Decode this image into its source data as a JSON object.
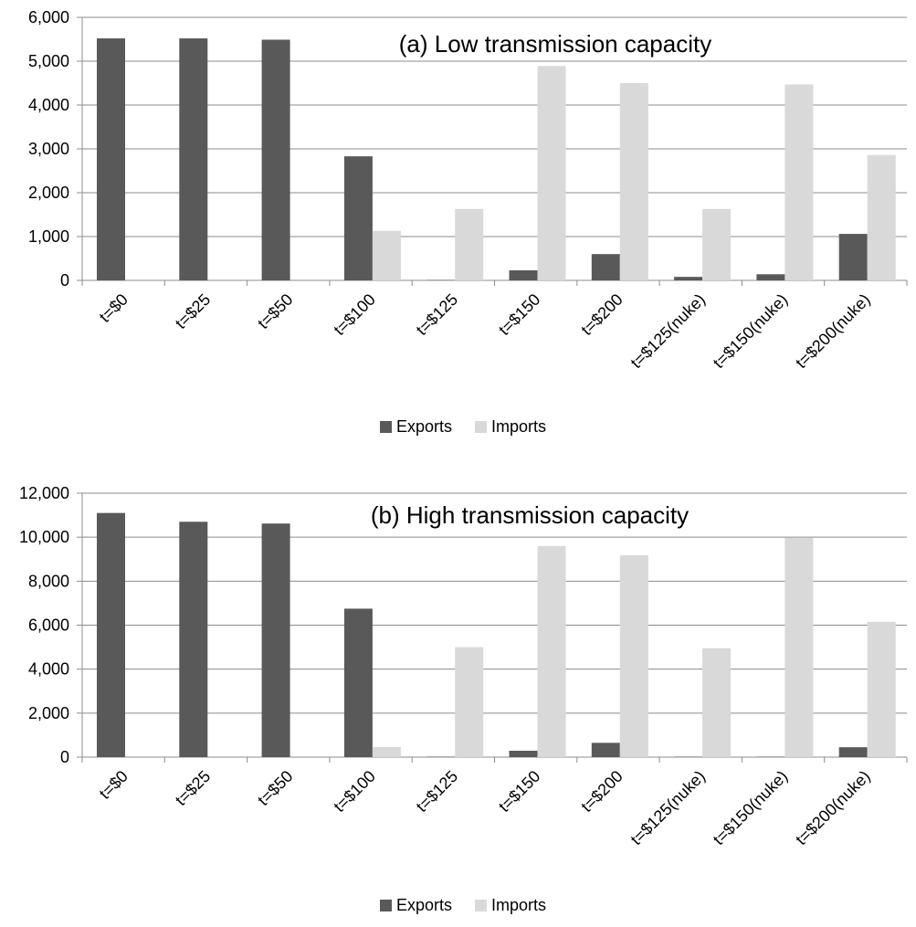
{
  "chart_data": [
    {
      "type": "bar",
      "title": "(a) Low transmission capacity",
      "categories": [
        "t=$0",
        "t=$25",
        "t=$50",
        "t=$100",
        "t=$125",
        "t=$150",
        "t=$200",
        "t=$125(nuke)",
        "t=$150(nuke)",
        "t=$200(nuke)"
      ],
      "series": [
        {
          "name": "Exports",
          "color": "#595959",
          "values": [
            5520,
            5520,
            5490,
            2830,
            10,
            230,
            600,
            80,
            140,
            1060
          ]
        },
        {
          "name": "Imports",
          "color": "#d9d9d9",
          "values": [
            0,
            0,
            0,
            1130,
            1630,
            4890,
            4500,
            1630,
            4470,
            2860
          ]
        }
      ],
      "ylim": [
        0,
        6000
      ],
      "yticks": [
        0,
        1000,
        2000,
        3000,
        4000,
        5000,
        6000
      ],
      "ytick_labels": [
        "0",
        "1,000",
        "2,000",
        "3,000",
        "4,000",
        "5,000",
        "6,000"
      ],
      "grid": true,
      "legend": "bottom"
    },
    {
      "type": "bar",
      "title": "(b) High transmission capacity",
      "categories": [
        "t=$0",
        "t=$25",
        "t=$50",
        "t=$100",
        "t=$125",
        "t=$150",
        "t=$200",
        "t=$125(nuke)",
        "t=$150(nuke)",
        "t=$200(nuke)"
      ],
      "series": [
        {
          "name": "Exports",
          "color": "#595959",
          "values": [
            11100,
            10700,
            10620,
            6750,
            20,
            290,
            650,
            20,
            20,
            450
          ]
        },
        {
          "name": "Imports",
          "color": "#d9d9d9",
          "values": [
            0,
            0,
            0,
            460,
            5000,
            9600,
            9180,
            4950,
            9980,
            6150
          ]
        }
      ],
      "ylim": [
        0,
        12000
      ],
      "yticks": [
        0,
        2000,
        4000,
        6000,
        8000,
        10000,
        12000
      ],
      "ytick_labels": [
        "0",
        "2,000",
        "4,000",
        "6,000",
        "8,000",
        "10,000",
        "12,000"
      ],
      "grid": true,
      "legend": "bottom"
    }
  ]
}
